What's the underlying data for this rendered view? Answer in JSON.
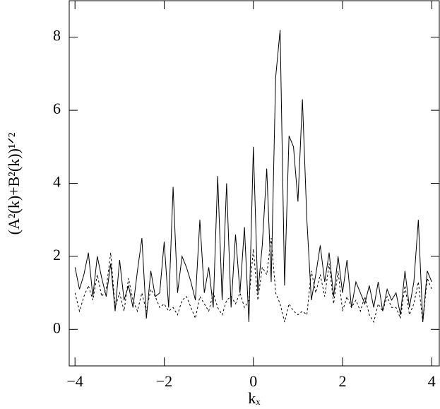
{
  "chart_data": {
    "type": "line",
    "xlabel": "kₓ",
    "ylabel": "(A²(k)+B²(k))¹ᐟ²",
    "x": [
      -4.0,
      -3.9,
      -3.8,
      -3.7,
      -3.6,
      -3.5,
      -3.4,
      -3.3,
      -3.2,
      -3.1,
      -3.0,
      -2.9,
      -2.8,
      -2.7,
      -2.6,
      -2.5,
      -2.4,
      -2.3,
      -2.2,
      -2.1,
      -2.0,
      -1.9,
      -1.8,
      -1.7,
      -1.6,
      -1.5,
      -1.4,
      -1.3,
      -1.2,
      -1.1,
      -1.0,
      -0.9,
      -0.8,
      -0.7,
      -0.6,
      -0.5,
      -0.4,
      -0.3,
      -0.2,
      -0.1,
      0.0,
      0.1,
      0.2,
      0.3,
      0.4,
      0.5,
      0.6,
      0.7,
      0.8,
      0.9,
      1.0,
      1.1,
      1.2,
      1.3,
      1.4,
      1.5,
      1.6,
      1.7,
      1.8,
      1.9,
      2.0,
      2.1,
      2.2,
      2.3,
      2.4,
      2.5,
      2.6,
      2.7,
      2.8,
      2.9,
      3.0,
      3.1,
      3.2,
      3.3,
      3.4,
      3.5,
      3.6,
      3.7,
      3.8,
      3.9,
      4.0
    ],
    "series": [
      {
        "color": "#000000",
        "line_style": "solid",
        "values": [
          1.7,
          1.1,
          1.5,
          2.1,
          0.9,
          2.0,
          1.4,
          0.9,
          1.8,
          0.5,
          1.9,
          0.8,
          1.2,
          0.6,
          1.6,
          2.5,
          0.3,
          1.6,
          0.9,
          1.0,
          2.4,
          0.6,
          3.9,
          1.0,
          2.0,
          1.7,
          1.3,
          0.8,
          3.0,
          1.0,
          1.7,
          0.6,
          4.2,
          0.8,
          4.0,
          0.6,
          2.6,
          1.0,
          2.8,
          0.2,
          5.0,
          1.0,
          2.3,
          4.4,
          1.3,
          6.9,
          8.2,
          1.2,
          5.3,
          5.0,
          3.5,
          6.3,
          3.0,
          0.8,
          1.5,
          2.3,
          1.3,
          2.1,
          0.9,
          2.0,
          1.0,
          1.9,
          0.6,
          1.3,
          1.0,
          0.7,
          1.2,
          0.6,
          1.3,
          0.5,
          1.1,
          0.8,
          1.0,
          0.4,
          1.6,
          0.6,
          1.3,
          3.0,
          0.2,
          1.6,
          1.3
        ]
      },
      {
        "color": "#000000",
        "line_style": "dashed",
        "values": [
          1.0,
          0.5,
          0.9,
          1.2,
          0.8,
          1.5,
          0.9,
          1.1,
          2.1,
          0.6,
          1.0,
          0.5,
          1.4,
          0.8,
          0.5,
          1.0,
          0.5,
          1.1,
          0.9,
          0.6,
          0.7,
          0.5,
          0.6,
          0.4,
          0.8,
          0.9,
          0.6,
          0.3,
          0.9,
          0.7,
          0.5,
          1.0,
          0.6,
          0.4,
          0.8,
          0.9,
          0.7,
          1.0,
          0.6,
          0.8,
          2.2,
          0.8,
          1.7,
          1.5,
          2.5,
          1.0,
          0.7,
          0.2,
          0.7,
          0.5,
          0.4,
          0.5,
          0.4,
          1.6,
          1.0,
          1.5,
          0.9,
          1.8,
          0.7,
          1.6,
          0.5,
          0.9,
          0.6,
          0.8,
          0.5,
          0.9,
          0.4,
          0.2,
          0.7,
          0.5,
          0.9,
          0.6,
          0.6,
          0.3,
          1.2,
          0.4,
          0.7,
          1.3,
          0.2,
          1.4,
          1.1
        ]
      }
    ],
    "xlim": [
      -4.13,
      4.17
    ],
    "ylim": [
      -1,
      9
    ],
    "xticks": [
      {
        "value": -4,
        "label": "−4"
      },
      {
        "value": -2,
        "label": "−2"
      },
      0,
      2,
      4
    ],
    "yticks": [
      0,
      2,
      4,
      6,
      8
    ]
  }
}
